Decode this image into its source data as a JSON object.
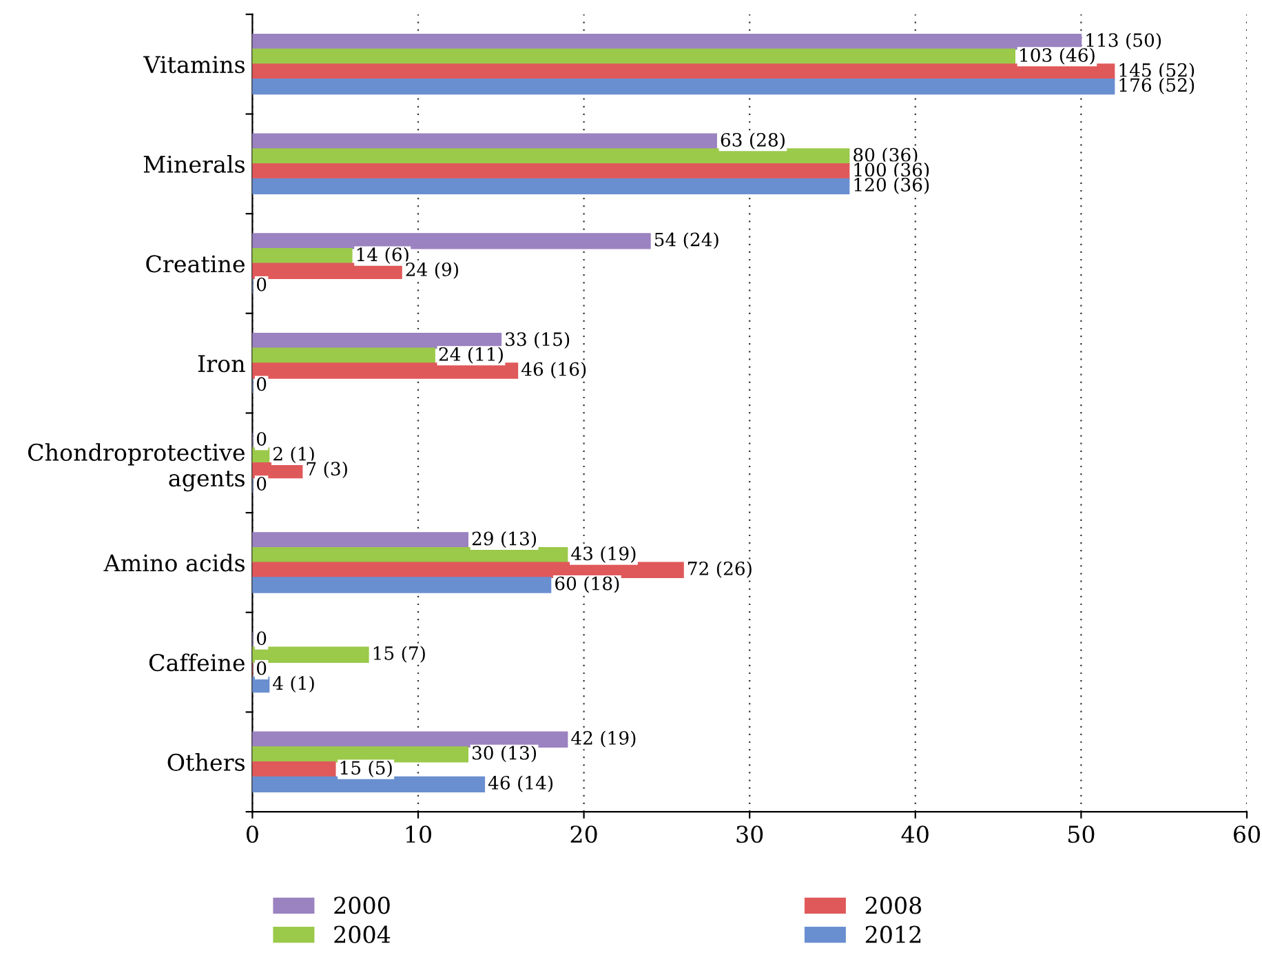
{
  "chart_data": {
    "type": "bar",
    "orientation": "horizontal",
    "categories": [
      "Vitamins",
      "Minerals",
      "Creatine",
      "Iron",
      "Chondroprotective\nagents",
      "Amino acids",
      "Caffeine",
      "Others"
    ],
    "series": [
      {
        "name": "2000",
        "color": "#9b82c0",
        "values": [
          50,
          28,
          24,
          15,
          0,
          13,
          0,
          19
        ],
        "value_labels": [
          "113 (50)",
          "63 (28)",
          "54 (24)",
          "33 (15)",
          "0",
          "29 (13)",
          "0",
          "42 (19)"
        ]
      },
      {
        "name": "2004",
        "color": "#9bc94a",
        "values": [
          46,
          36,
          6,
          11,
          1,
          19,
          7,
          13
        ],
        "value_labels": [
          "103 (46)",
          "80 (36)",
          "14 (6)",
          "24 (11)",
          "2 (1)",
          "43 (19)",
          "15 (7)",
          "30 (13)"
        ]
      },
      {
        "name": "2008",
        "color": "#e0595a",
        "values": [
          52,
          36,
          9,
          16,
          3,
          26,
          0,
          5
        ],
        "value_labels": [
          "145 (52)",
          "100 (36)",
          "24 (9)",
          "46 (16)",
          "7 (3)",
          "72 (26)",
          "0",
          "15 (5)"
        ]
      },
      {
        "name": "2012",
        "color": "#6a8fd0",
        "values": [
          52,
          36,
          0,
          0,
          0,
          18,
          1,
          14
        ],
        "value_labels": [
          "176 (52)",
          "120 (36)",
          "0",
          "0",
          "0",
          "60 (18)",
          "4 (1)",
          "46 (14)"
        ]
      }
    ],
    "xlim": [
      0,
      60
    ],
    "xticks": [
      0,
      10,
      20,
      30,
      40,
      50,
      60
    ],
    "grid": "x",
    "legend": "bottom"
  }
}
